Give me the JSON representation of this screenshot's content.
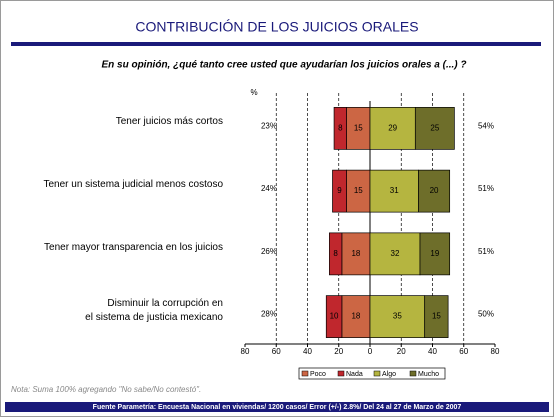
{
  "chart_data": {
    "type": "diverging_bar",
    "title": "CONTRIBUCIÓN DE LOS JUICIOS ORALES",
    "subtitle": "En su opinión, ¿qué tanto cree usted que ayudarían los juicios orales a  (...) ?",
    "x_label": "%",
    "categories": [
      "Tener juicios más cortos",
      "Tener un sistema judicial menos costoso",
      "Tener mayor transparencia en los juicios",
      "Disminuir la corrupción en\nel sistema de justicia mexicano"
    ],
    "series": [
      {
        "name": "Poco",
        "color": "#cc6644",
        "side": "left",
        "values": [
          15,
          15,
          18,
          18
        ]
      },
      {
        "name": "Nada",
        "color": "#c0272d",
        "side": "left",
        "values": [
          8,
          9,
          8,
          10
        ]
      },
      {
        "name": "Algo",
        "color": "#b5b540",
        "side": "right",
        "values": [
          29,
          31,
          32,
          35
        ]
      },
      {
        "name": "Mucho",
        "color": "#6e6e2a",
        "side": "right",
        "values": [
          25,
          20,
          19,
          15
        ]
      }
    ],
    "left_totals": {
      "values": [
        23,
        24,
        26,
        28
      ],
      "value_labels": [
        "23%",
        "24%",
        "26%",
        "28%"
      ]
    },
    "right_totals": {
      "values": [
        54,
        51,
        51,
        50
      ],
      "value_labels": [
        "54%",
        "51%",
        "51%",
        "50%"
      ]
    },
    "xlim": [
      -80,
      80
    ],
    "xticks": [
      {
        "value": -80,
        "label": "80"
      },
      {
        "value": -60,
        "label": "60"
      },
      {
        "value": -40,
        "label": "40"
      },
      {
        "value": -20,
        "label": "20"
      },
      0,
      20,
      40,
      60,
      80
    ],
    "grid": true,
    "note": "Nota: Suma 100% agregando \"No sabe/No contestó\".",
    "source": "Fuente Parametría: Encuesta Nacional en viviendas/ 1200 casos/ Error (+/-) 2.8%/ Del 24 al 27 de Marzo de 2007"
  }
}
